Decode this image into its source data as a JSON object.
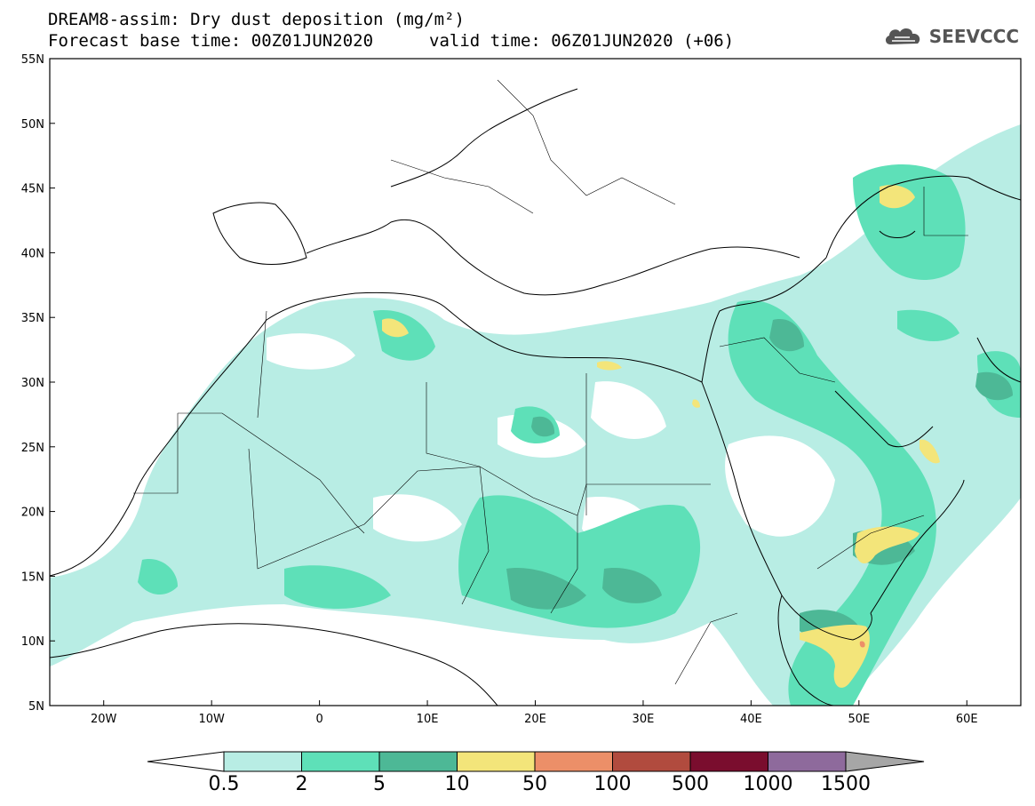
{
  "header": {
    "title_line1": "DREAM8-assim: Dry dust deposition (mg/m²)",
    "title_line2": "Forecast base time: 00Z01JUN2020",
    "valid_time": "valid time: 06Z01JUN2020 (+06)"
  },
  "brand": {
    "name": "SEEVCCC",
    "icon": "cloud-icon"
  },
  "map": {
    "lon_range": [
      -25,
      65
    ],
    "lat_range": [
      5,
      55
    ],
    "lat_ticks": [
      "5N",
      "10N",
      "15N",
      "20N",
      "25N",
      "30N",
      "35N",
      "40N",
      "45N",
      "50N",
      "55N"
    ],
    "lon_ticks": [
      "20W",
      "10W",
      "0",
      "10E",
      "20E",
      "30E",
      "40E",
      "50E",
      "60E"
    ]
  },
  "legend": {
    "labels": [
      "0.5",
      "2",
      "5",
      "10",
      "50",
      "100",
      "500",
      "1000",
      "1500"
    ],
    "colors": [
      "#b8ede4",
      "#5ee0b8",
      "#4db896",
      "#f3e57a",
      "#ec8f68",
      "#b14b3e",
      "#7a0d2e",
      "#8e6a9c",
      "#a6a6a6"
    ]
  }
}
